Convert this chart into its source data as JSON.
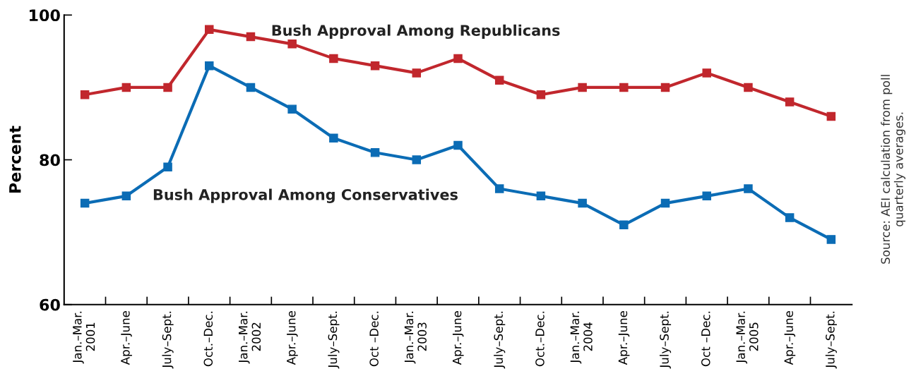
{
  "chart_data": {
    "type": "line",
    "ylabel": "Percent",
    "categories": [
      "Jan.–Mar.\n2001",
      "Apr.–June",
      "July–Sept.",
      "Oct.–Dec.",
      "Jan.–Mar.\n2002",
      "Apr.–June",
      "July–Sept.",
      "Oct –Dec.",
      "Jan.–Mar.\n2003",
      "Apr.–June",
      "July–Sept.",
      "Oct.–Dec.",
      "Jan.–Mar.\n2004",
      "Apr.–June",
      "July–Sept.",
      "Oct –Dec.",
      "Jan.–Mar.\n2005",
      "Apr.–June",
      "July–Sept."
    ],
    "series": [
      {
        "name": "Bush Approval Among Republicans",
        "color": "#c1272d",
        "values": [
          89,
          90,
          90,
          98,
          97,
          96,
          94,
          93,
          92,
          94,
          91,
          89,
          90,
          90,
          90,
          92,
          90,
          88,
          86
        ]
      },
      {
        "name": "Bush Approval Among Conservatives",
        "color": "#0b6cb5",
        "values": [
          74,
          75,
          79,
          93,
          90,
          87,
          83,
          81,
          80,
          82,
          76,
          75,
          74,
          71,
          74,
          75,
          76,
          72,
          69
        ]
      }
    ],
    "ylim": [
      60,
      100
    ],
    "yticks": [
      60,
      80,
      100
    ],
    "grid": false,
    "legend": false,
    "marker": "square",
    "line_style": "solid",
    "annotations": [
      "Source: AEI calculation from poll\nquarterly averages."
    ]
  }
}
